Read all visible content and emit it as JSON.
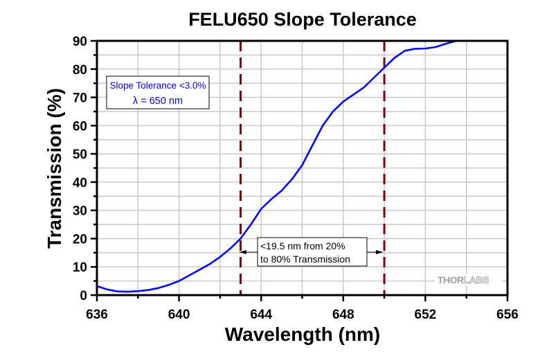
{
  "chart_data": {
    "type": "line",
    "title": "FELU650 Slope Tolerance",
    "xlabel": "Wavelength (nm)",
    "ylabel": "Transmission (%)",
    "xlim": [
      636,
      656
    ],
    "ylim": [
      0,
      90
    ],
    "xticks": [
      636,
      640,
      644,
      648,
      652,
      656
    ],
    "xtick_labels": [
      "636",
      "640",
      "644",
      "648",
      "652",
      "656"
    ],
    "yticks": [
      0,
      10,
      20,
      30,
      40,
      50,
      60,
      70,
      80,
      90
    ],
    "ytick_labels": [
      "0",
      "10",
      "20",
      "30",
      "40",
      "50",
      "60",
      "70",
      "80",
      "90"
    ],
    "grid": true,
    "series": [
      {
        "name": "Transmission",
        "color": "#0000ff",
        "x": [
          636,
          636.5,
          637,
          637.5,
          638,
          638.5,
          639,
          639.5,
          640,
          640.5,
          641,
          641.5,
          642,
          642.5,
          643,
          643.5,
          644,
          644.5,
          645,
          645.5,
          646,
          646.5,
          647,
          647.5,
          648,
          648.5,
          649,
          649.5,
          650,
          650.5,
          651,
          651.5,
          652,
          652.5,
          653,
          653.5
        ],
        "y": [
          3.2,
          2.0,
          1.3,
          1.2,
          1.4,
          1.8,
          2.5,
          3.6,
          5.0,
          7.0,
          9.0,
          11.0,
          13.5,
          16.5,
          20.0,
          25.0,
          30.5,
          34.0,
          37.0,
          41.0,
          46.0,
          53.0,
          60.0,
          65.0,
          68.5,
          71.0,
          73.5,
          77.0,
          80.5,
          84.0,
          86.5,
          87.2,
          87.3,
          87.8,
          89.0,
          90.5
        ]
      }
    ],
    "markers": [
      {
        "name": "20% wavelength",
        "x": 643,
        "color": "#800000",
        "style": "dashed-vertical"
      },
      {
        "name": "80% wavelength",
        "x": 650,
        "color": "#800000",
        "style": "dashed-vertical"
      }
    ],
    "annotations": [
      {
        "id": "spec-box",
        "lines": [
          "Slope Tolerance <3.0%",
          "λ = 650 nm"
        ],
        "color": "#0000ff",
        "placement": "top-left"
      },
      {
        "id": "range-box",
        "lines": [
          "<19.5 nm from 20%",
          "to 80% Transmission"
        ],
        "color": "#000000",
        "placement": "between markers, lower"
      }
    ],
    "watermark": {
      "bold": "THOR",
      "outline": "LABS"
    }
  }
}
